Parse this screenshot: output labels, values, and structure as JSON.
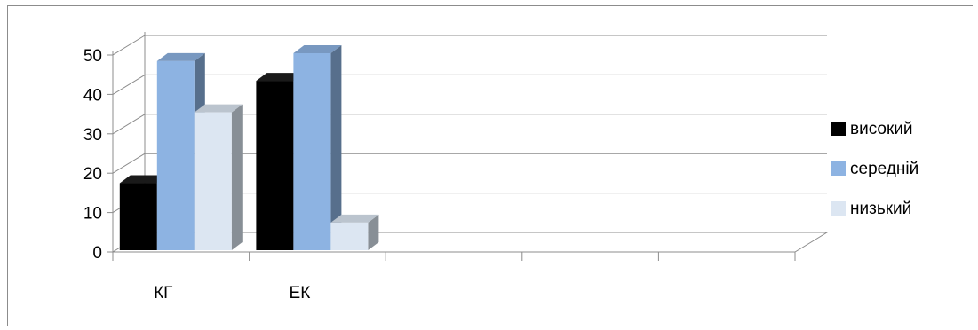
{
  "chart_data": {
    "type": "bar",
    "categories": [
      "КГ",
      "ЕК",
      "",
      "",
      ""
    ],
    "series": [
      {
        "name": "високий",
        "values": [
          17,
          43,
          null,
          null,
          null
        ],
        "color": "#000000"
      },
      {
        "name": "середній",
        "values": [
          48,
          50,
          null,
          null,
          null
        ],
        "color": "#8db3e2"
      },
      {
        "name": "низький",
        "values": [
          35,
          7,
          null,
          null,
          null
        ],
        "color": "#dce6f2"
      }
    ],
    "y_ticks": [
      "0",
      "10",
      "20",
      "30",
      "40",
      "50"
    ],
    "ylim": [
      0,
      50
    ],
    "grid": true,
    "legend_position": "right",
    "style": "3d-clustered-column"
  }
}
